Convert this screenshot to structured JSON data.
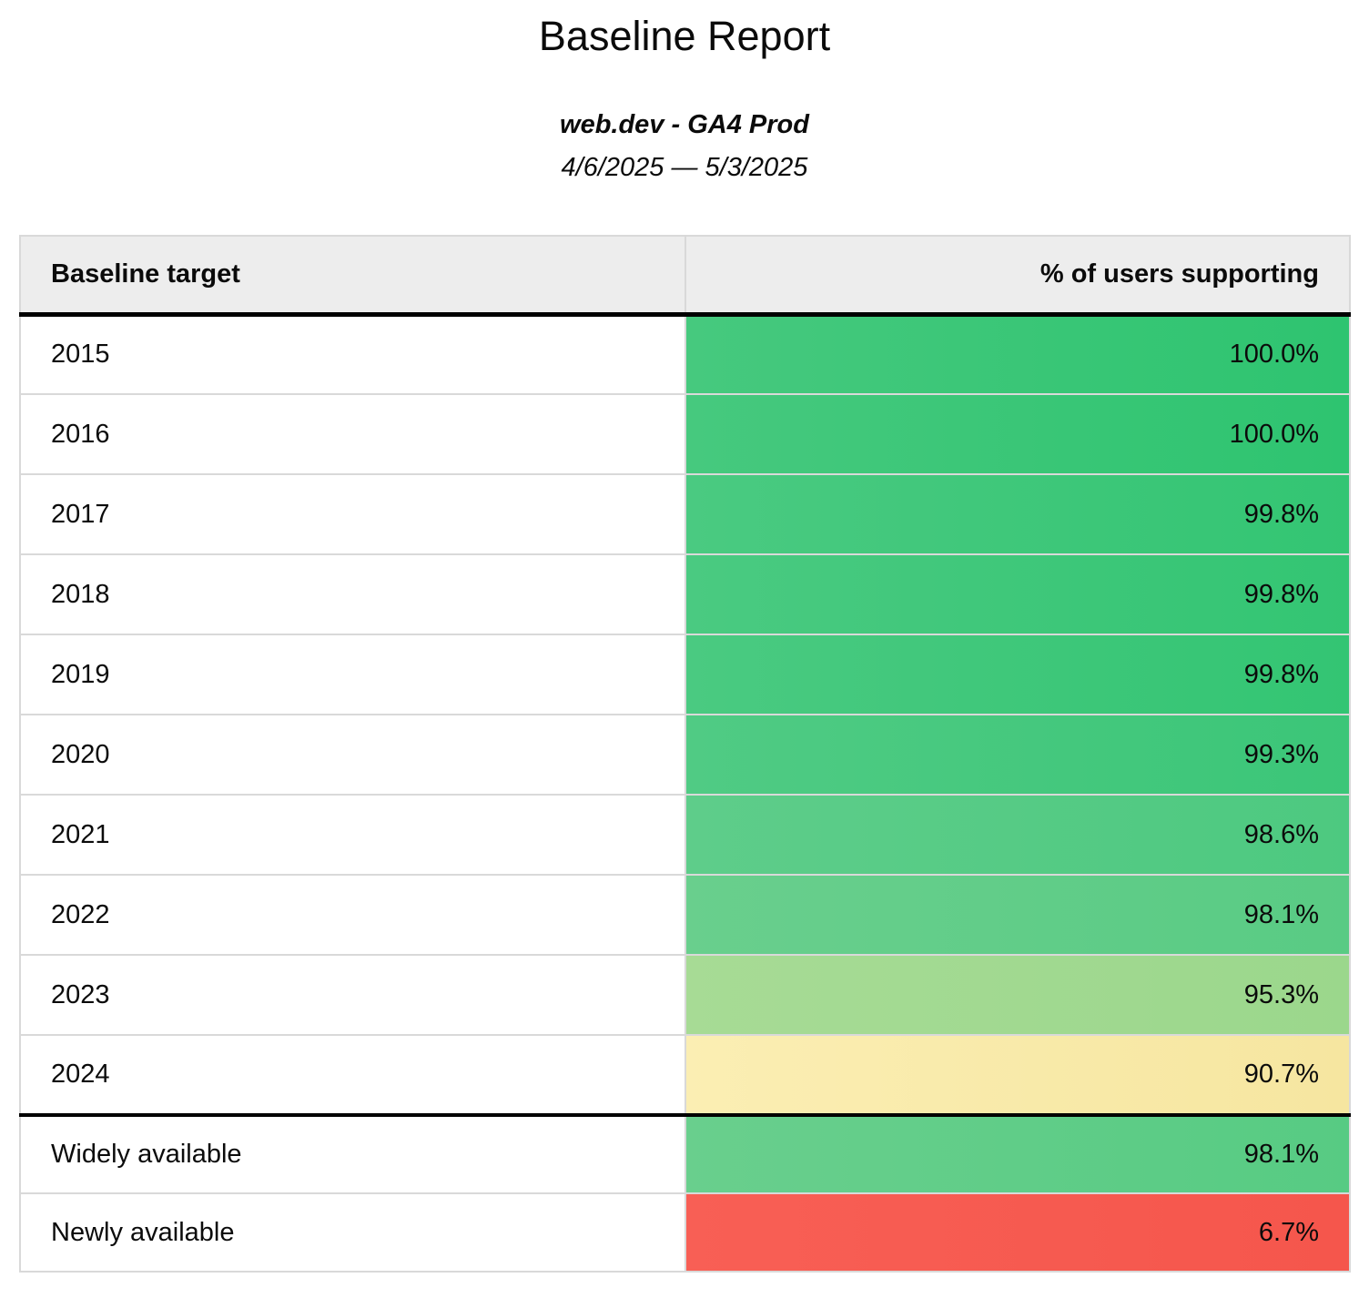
{
  "header": {
    "title": "Baseline Report",
    "subtitle": "web.dev - GA4 Prod",
    "date_range": "4/6/2025 — 5/3/2025"
  },
  "table": {
    "columns": {
      "target": "Baseline target",
      "support": "% of users supporting"
    },
    "rows": [
      {
        "label": "2015",
        "value": "100.0%",
        "color_left": "#46c97e",
        "color_right": "#2ec470",
        "group": "year"
      },
      {
        "label": "2016",
        "value": "100.0%",
        "color_left": "#46c97e",
        "color_right": "#2ec470",
        "group": "year"
      },
      {
        "label": "2017",
        "value": "99.8%",
        "color_left": "#4aca81",
        "color_right": "#33c573",
        "group": "year"
      },
      {
        "label": "2018",
        "value": "99.8%",
        "color_left": "#4aca81",
        "color_right": "#33c573",
        "group": "year"
      },
      {
        "label": "2019",
        "value": "99.8%",
        "color_left": "#4aca81",
        "color_right": "#33c573",
        "group": "year"
      },
      {
        "label": "2020",
        "value": "99.3%",
        "color_left": "#50cb84",
        "color_right": "#3bc678",
        "group": "year"
      },
      {
        "label": "2021",
        "value": "98.6%",
        "color_left": "#5ecd8a",
        "color_right": "#4dc980",
        "group": "year"
      },
      {
        "label": "2022",
        "value": "98.1%",
        "color_left": "#69cf8d",
        "color_right": "#59cb84",
        "group": "year"
      },
      {
        "label": "2023",
        "value": "95.3%",
        "color_left": "#a7db95",
        "color_right": "#9bd78c",
        "group": "year"
      },
      {
        "label": "2024",
        "value": "90.7%",
        "color_left": "#fbeeb3",
        "color_right": "#f6e6a0",
        "group": "year"
      },
      {
        "label": "Widely available",
        "value": "98.1%",
        "color_left": "#69cf8d",
        "color_right": "#57cb83",
        "group": "summary"
      },
      {
        "label": "Newly available",
        "value": "6.7%",
        "color_left": "#f85f55",
        "color_right": "#f5564c",
        "group": "summary"
      }
    ]
  },
  "colors": {
    "header_background": "#ededed",
    "grid_border": "#d9d9d9",
    "section_divider": "#000000",
    "text": "#0b0b0b"
  },
  "chart_data": {
    "type": "table",
    "title": "Baseline Report",
    "subtitle": "web.dev - GA4 Prod",
    "date_range": "4/6/2025 — 5/3/2025",
    "columns": [
      "Baseline target",
      "% of users supporting"
    ],
    "categories": [
      "2015",
      "2016",
      "2017",
      "2018",
      "2019",
      "2020",
      "2021",
      "2022",
      "2023",
      "2024",
      "Widely available",
      "Newly available"
    ],
    "values": [
      100.0,
      100.0,
      99.8,
      99.8,
      99.8,
      99.3,
      98.6,
      98.1,
      95.3,
      90.7,
      98.1,
      6.7
    ],
    "unit": "%",
    "color_scale": "green-to-red heatmap on value column"
  }
}
